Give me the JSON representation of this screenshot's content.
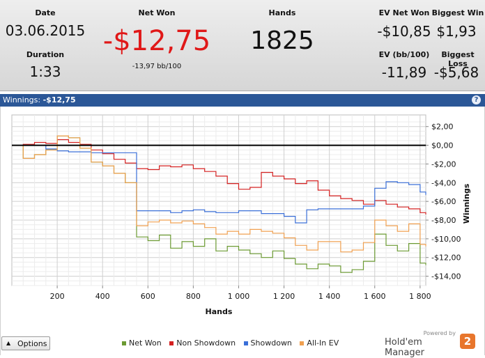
{
  "summary": {
    "date_label": "Date",
    "date_value": "03.06.2015",
    "duration_label": "Duration",
    "duration_value": "1:33",
    "net_won_label": "Net Won",
    "net_won_value": "-$12,75",
    "net_won_sub": "-13,97 bb/100",
    "hands_label": "Hands",
    "hands_value": "1825",
    "ev_net_won_label": "EV Net Won",
    "ev_net_won_value": "-$10,85",
    "biggest_win_label": "Biggest Win",
    "biggest_win_value": "$1,93",
    "ev_bb100_label": "EV (bb/100)",
    "ev_bb100_value": "-11,89",
    "biggest_loss_label": "Biggest Loss",
    "biggest_loss_value": "-$5,68"
  },
  "chart_header": {
    "label": "Winnings:",
    "value": "-$12,75",
    "help_icon": "?"
  },
  "colors": {
    "net_won": "#6b9a32",
    "non_showdown": "#d42020",
    "showdown": "#3a6fd8",
    "all_in_ev": "#f0a050",
    "negative": "#e01818"
  },
  "chart_data": {
    "type": "line",
    "xlabel": "Hands",
    "ylabel": "Winnings",
    "xlim": [
      0,
      1825
    ],
    "ylim": [
      -15,
      2.5
    ],
    "x_ticks": [
      200,
      400,
      600,
      800,
      1000,
      1200,
      1400,
      1600,
      1800
    ],
    "x_tick_labels": [
      "200",
      "400",
      "600",
      "800",
      "1 000",
      "1 200",
      "1 400",
      "1 600",
      "1 800"
    ],
    "y_ticks": [
      2,
      0,
      -2,
      -4,
      -6,
      -8,
      -10,
      -12,
      -14
    ],
    "y_tick_labels": [
      "$2,00",
      "$0,00",
      "-$2,00",
      "-$4,00",
      "-$6,00",
      "-$8,00",
      "-$10,00",
      "-$12,00",
      "-$14,00"
    ],
    "legend_position": "bottom",
    "grid": true,
    "x": [
      0,
      50,
      100,
      150,
      200,
      250,
      300,
      350,
      400,
      450,
      500,
      550,
      600,
      650,
      700,
      750,
      800,
      850,
      900,
      950,
      1000,
      1050,
      1100,
      1150,
      1200,
      1250,
      1300,
      1350,
      1400,
      1450,
      1500,
      1550,
      1600,
      1650,
      1700,
      1750,
      1800,
      1825
    ],
    "series": [
      {
        "name": "Net Won",
        "color": "#6b9a32",
        "values": [
          0,
          -1.4,
          -1.0,
          -0.5,
          1.0,
          0.8,
          -0.3,
          -1.8,
          -2.2,
          -3.0,
          -4.0,
          -9.8,
          -10.2,
          -9.6,
          -11.0,
          -10.3,
          -10.8,
          -10.0,
          -11.3,
          -10.8,
          -11.2,
          -11.6,
          -12.0,
          -11.3,
          -12.1,
          -12.7,
          -13.2,
          -12.7,
          -12.9,
          -13.6,
          -13.3,
          -12.4,
          -9.5,
          -10.7,
          -11.3,
          -10.5,
          -12.6,
          -12.8
        ]
      },
      {
        "name": "Non Showdown",
        "color": "#d42020",
        "values": [
          0,
          0.1,
          0.3,
          0.2,
          0.6,
          0.3,
          0.1,
          -0.5,
          -0.9,
          -1.5,
          -1.9,
          -2.5,
          -2.6,
          -2.2,
          -2.3,
          -2.1,
          -2.5,
          -2.8,
          -3.3,
          -4.1,
          -4.7,
          -4.5,
          -2.9,
          -3.3,
          -3.6,
          -4.1,
          -3.8,
          -4.8,
          -5.4,
          -5.7,
          -5.9,
          -6.3,
          -5.9,
          -6.3,
          -6.6,
          -6.8,
          -7.2,
          -7.4
        ]
      },
      {
        "name": "Showdown",
        "color": "#3a6fd8",
        "values": [
          0,
          0,
          0,
          -0.4,
          -0.6,
          -0.7,
          -0.7,
          -0.8,
          -0.8,
          -0.8,
          -0.8,
          -7.0,
          -7.0,
          -7.0,
          -7.2,
          -7.0,
          -6.9,
          -7.1,
          -7.2,
          -7.2,
          -7.0,
          -7.0,
          -7.3,
          -7.3,
          -7.6,
          -8.3,
          -6.9,
          -6.8,
          -6.8,
          -6.8,
          -6.8,
          -6.5,
          -4.6,
          -3.9,
          -4.0,
          -4.2,
          -5.0,
          -5.3
        ]
      },
      {
        "name": "All-In EV",
        "color": "#f0a050",
        "values": [
          0,
          -1.4,
          -1.0,
          -0.5,
          1.0,
          0.8,
          -0.3,
          -1.8,
          -2.2,
          -3.0,
          -4.0,
          -8.6,
          -8.2,
          -8.0,
          -8.3,
          -8.1,
          -8.4,
          -8.8,
          -9.5,
          -9.2,
          -9.5,
          -9.0,
          -9.2,
          -9.4,
          -9.9,
          -10.7,
          -11.2,
          -10.3,
          -10.3,
          -11.4,
          -11.2,
          -10.4,
          -8.0,
          -8.6,
          -9.2,
          -8.4,
          -10.6,
          -10.8
        ]
      }
    ]
  },
  "footer": {
    "options_label": "Options",
    "options_arrow": "▲",
    "legend": [
      {
        "name": "Net Won",
        "color": "#6b9a32"
      },
      {
        "name": "Non Showdown",
        "color": "#d42020"
      },
      {
        "name": "Showdown",
        "color": "#3a6fd8"
      },
      {
        "name": "All-In EV",
        "color": "#f0a050"
      }
    ],
    "powered_by": "Powered by",
    "brand_name": "Hold'em Manager",
    "brand_badge": "2"
  }
}
